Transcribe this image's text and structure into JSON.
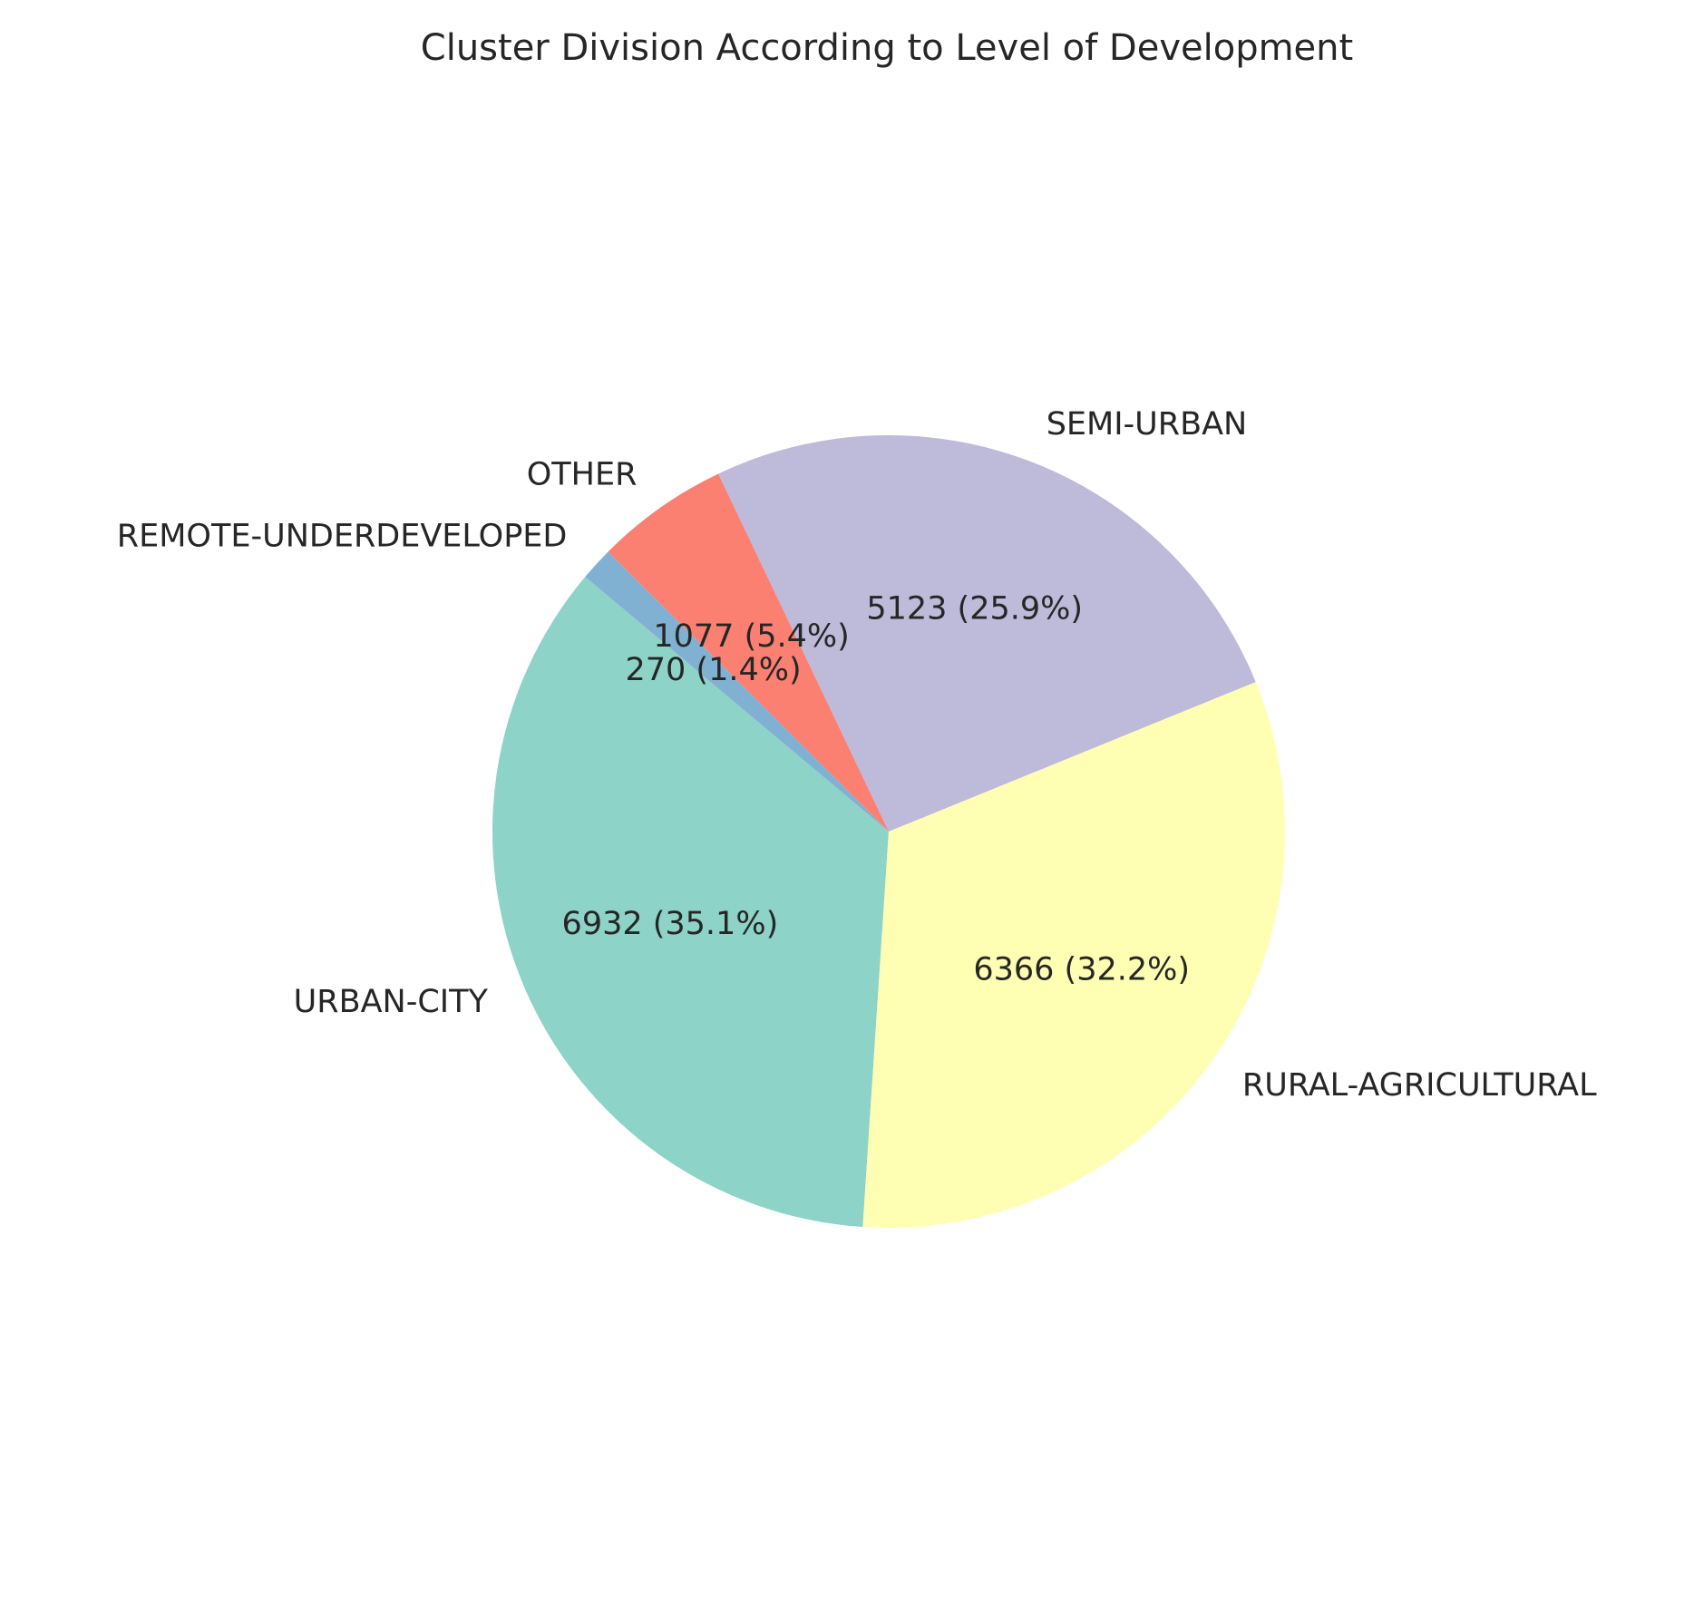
{
  "chart_data": {
    "type": "pie",
    "title": "Cluster Division According to Level of Development",
    "slices": [
      {
        "label": "URBAN-CITY",
        "value": 6932,
        "percent": 35.1,
        "display": "6932 (35.1%)",
        "color": "#8dd3c7"
      },
      {
        "label": "RURAL-AGRICULTURAL",
        "value": 6366,
        "percent": 32.2,
        "display": "6366 (32.2%)",
        "color": "#ffffb3"
      },
      {
        "label": "SEMI-URBAN",
        "value": 5123,
        "percent": 25.9,
        "display": "5123 (25.9%)",
        "color": "#bebada"
      },
      {
        "label": "OTHER",
        "value": 1077,
        "percent": 5.4,
        "display": "1077 (5.4%)",
        "color": "#fb8072"
      },
      {
        "label": "REMOTE-UNDERDEVELOPED",
        "value": 270,
        "percent": 1.4,
        "display": "270 (1.4%)",
        "color": "#80b1d3"
      }
    ],
    "start_angle_deg": 140,
    "direction": "counterclockwise",
    "legend": "none"
  }
}
